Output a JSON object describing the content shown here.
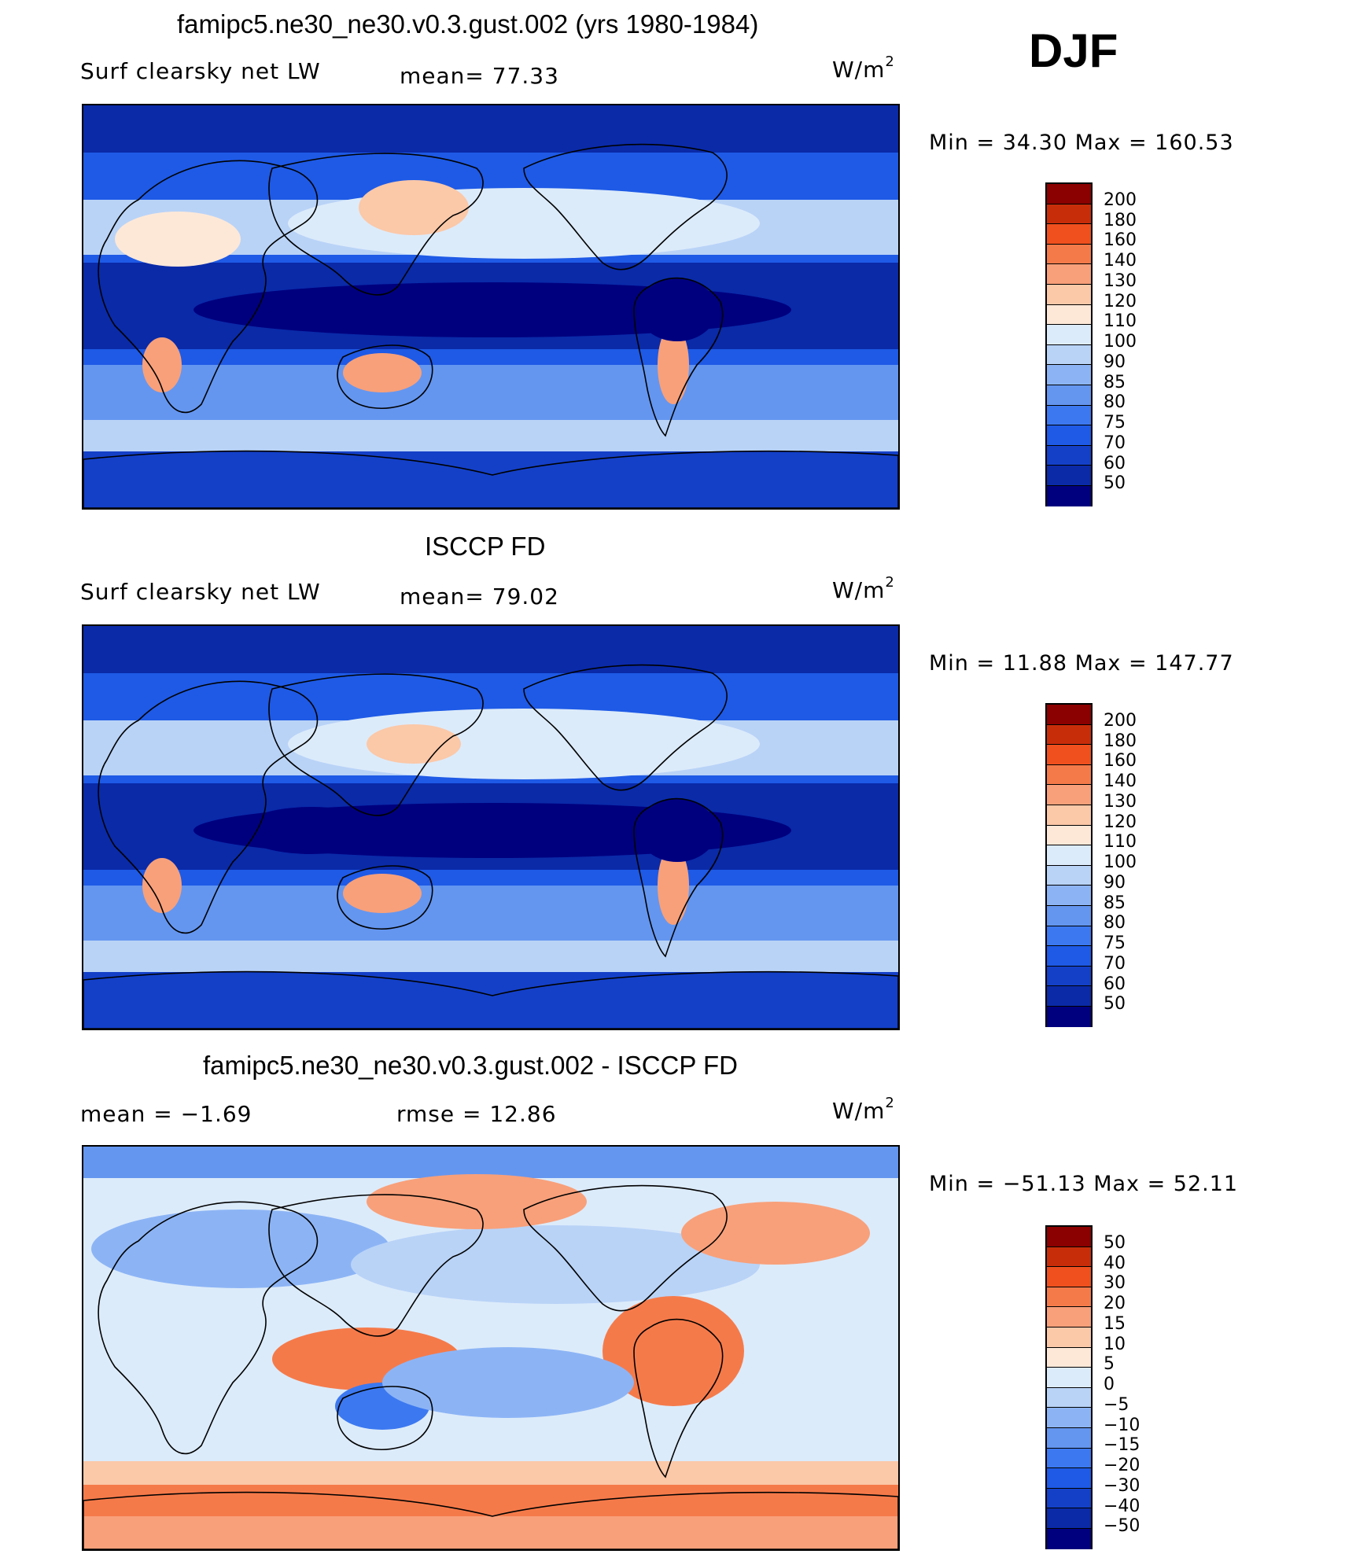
{
  "season": "DJF",
  "colors": {
    "abs_scale": [
      "#00007f",
      "#0a2aa8",
      "#1440c8",
      "#1e5ae6",
      "#3c78f0",
      "#6496f0",
      "#8cb4f5",
      "#b9d3f7",
      "#dcebfa",
      "#fde8d8",
      "#fbc8a8",
      "#f8a07a",
      "#f57a4a",
      "#f0501e",
      "#c82d0a",
      "#8b0000"
    ],
    "diff_scale": [
      "#00007f",
      "#0a2aa8",
      "#1440c8",
      "#1e5ae6",
      "#3c78f0",
      "#6496f0",
      "#8cb4f5",
      "#b9d3f7",
      "#dcebfa",
      "#fde8d8",
      "#fbc8a8",
      "#f8a07a",
      "#f57a4a",
      "#f0501e",
      "#c82d0a",
      "#8b0000"
    ]
  },
  "panels": [
    {
      "title": "famipc5.ne30_ne30.v0.3.gust.002 (yrs 1980-1984)",
      "left_label": "Surf clearsky net LW",
      "center_label": "mean=  77.33",
      "units": "W/m",
      "units_sup": "2",
      "minmax": "Min =   34.30 Max = 160.53",
      "colorbar": {
        "ticks": [
          "200",
          "180",
          "160",
          "140",
          "130",
          "120",
          "110",
          "100",
          "90",
          "85",
          "80",
          "75",
          "70",
          "60",
          "50"
        ]
      },
      "map_style": "model"
    },
    {
      "title": "ISCCP FD",
      "left_label": "Surf clearsky net LW",
      "center_label": "mean=  79.02",
      "units": "W/m",
      "units_sup": "2",
      "minmax": "Min =   11.88 Max = 147.77",
      "colorbar": {
        "ticks": [
          "200",
          "180",
          "160",
          "140",
          "130",
          "120",
          "110",
          "100",
          "90",
          "85",
          "80",
          "75",
          "70",
          "60",
          "50"
        ]
      },
      "map_style": "obs"
    },
    {
      "title": "famipc5.ne30_ne30.v0.3.gust.002 - ISCCP FD",
      "left_label": "mean =   −1.69",
      "center_label": "rmse =   12.86",
      "units": "W/m",
      "units_sup": "2",
      "minmax": "Min = −51.13 Max =  52.11",
      "colorbar": {
        "ticks": [
          "50",
          "40",
          "30",
          "20",
          "15",
          "10",
          "5",
          "0",
          "−5",
          "−10",
          "−15",
          "−20",
          "−30",
          "−40",
          "−50"
        ]
      },
      "map_style": "diff"
    }
  ]
}
